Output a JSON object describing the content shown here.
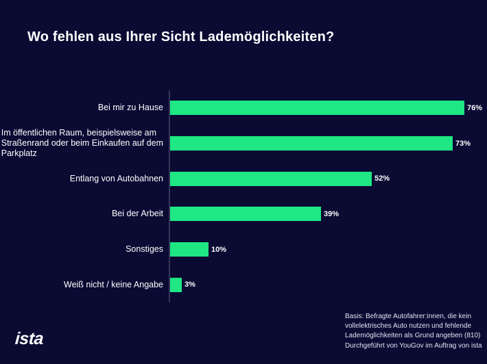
{
  "title": "Wo fehlen aus Ihrer Sicht Lademöglichkeiten?",
  "chart_data": {
    "type": "bar",
    "orientation": "horizontal",
    "title": "Wo fehlen aus Ihrer Sicht Lademöglichkeiten?",
    "categories": [
      "Bei mir zu Hause",
      "Im öffentlichen Raum, beispielsweise am\nStraßenrand oder beim Einkaufen auf dem\nParkplatz",
      "Entlang von Autobahnen",
      "Bei der Arbeit",
      "Sonstiges",
      "Weiß nicht / keine Angabe"
    ],
    "values": [
      76,
      73,
      52,
      39,
      10,
      3
    ],
    "value_labels": [
      "76%",
      "73%",
      "52%",
      "39%",
      "10%",
      "3%"
    ],
    "unit": "%",
    "xlim": [
      0,
      82
    ],
    "gridlines": false,
    "legend": "none",
    "bar_color": "#1ee783",
    "background": "#0a0a33",
    "text_color": "#ffffff",
    "axis_line_color": "#35355c"
  },
  "footer": {
    "text": "Basis: Befragte Autofahrer:innen, die kein\nvollelektrisches Auto nutzen und fehlende\nLademöglichkeiten als Grund angeben (810)\nDurchgeführt von YouGov im Auftrag von ista"
  },
  "logo": {
    "text": "ista"
  }
}
